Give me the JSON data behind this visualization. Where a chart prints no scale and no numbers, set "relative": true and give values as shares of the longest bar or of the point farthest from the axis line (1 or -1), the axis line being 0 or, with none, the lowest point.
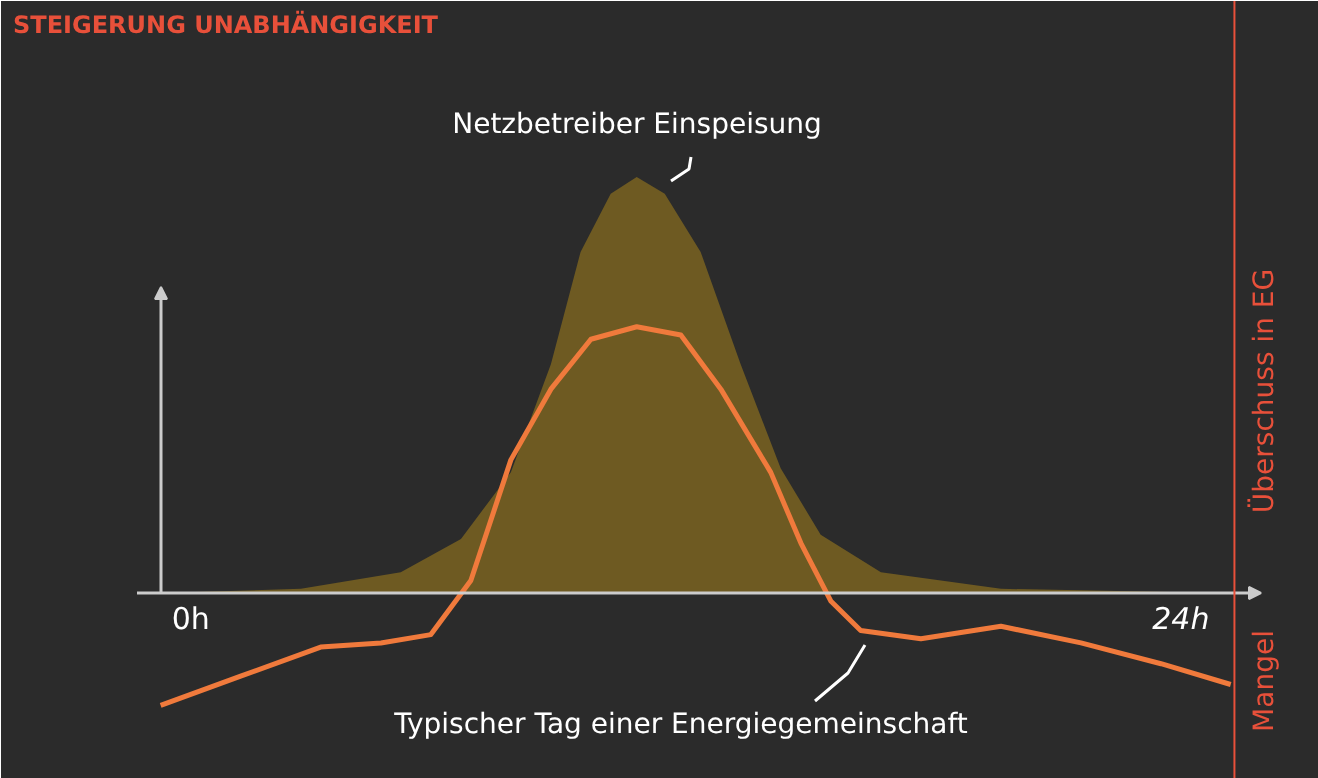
{
  "chart_data": {
    "type": "area",
    "relative": true,
    "title": "STEIGERUNG UNABHÄNGIGKEIT",
    "xlim": [
      -4.6,
      27.35
    ],
    "xticks": [
      {
        "value": 0,
        "label": "0h"
      },
      {
        "value": 24,
        "label": "24h"
      }
    ],
    "series": [
      {
        "name": "Netzbetreiber Einspeisung",
        "color": "#6e5a22",
        "x": [
          -0.73,
          2.67,
          5.09,
          6.55,
          7.76,
          8.73,
          9.45,
          10.18,
          10.81,
          11.49,
          12.36,
          13.33,
          14.3,
          15.27,
          16.73,
          19.64,
          24.97
        ],
        "values": [
          0,
          0.01,
          0.05,
          0.13,
          0.29,
          0.55,
          0.82,
          0.96,
          1,
          0.96,
          0.82,
          0.55,
          0.3,
          0.14,
          0.05,
          0.01,
          0
        ]
      },
      {
        "name": "Typischer Tag einer Energiegemeinschaft",
        "type": "line",
        "color": "#f07a3c",
        "x": [
          -0.73,
          1.21,
          3.15,
          4.61,
          5.82,
          6.79,
          7.76,
          8.73,
          9.7,
          10.81,
          11.88,
          12.85,
          14.06,
          14.79,
          15.52,
          16.24,
          17.7,
          19.64,
          21.58,
          23.52,
          25.21
        ],
        "values": [
          -0.27,
          -0.2,
          -0.13,
          -0.12,
          -0.1,
          0.03,
          0.32,
          0.49,
          0.61,
          0.64,
          0.62,
          0.49,
          0.29,
          0.12,
          -0.02,
          -0.09,
          -0.11,
          -0.08,
          -0.12,
          -0.17,
          -0.22
        ]
      }
    ],
    "annotations": [
      "Überschuss in EG",
      "Mangel"
    ],
    "ref_lines": [
      {
        "axis": "x",
        "value": 25.3,
        "color": "#e8503a"
      }
    ]
  }
}
